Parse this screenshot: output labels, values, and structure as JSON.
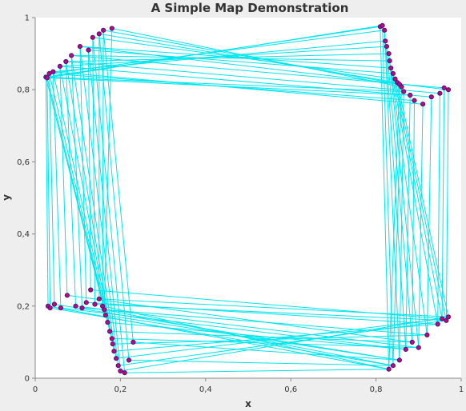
{
  "chart_data": {
    "type": "scatter",
    "title": "A Simple Map Demonstration",
    "xlabel": "x",
    "ylabel": "y",
    "xlim": [
      0,
      1
    ],
    "ylim": [
      0,
      1
    ],
    "x_ticks": [
      "0",
      "0,2",
      "0,4",
      "0,6",
      "0,8",
      "1"
    ],
    "y_ticks": [
      "0",
      "0,2",
      "0,4",
      "0,6",
      "0,8",
      "1"
    ],
    "grid": false,
    "legend": "none",
    "colors": {
      "background": "#eeeeee",
      "plot_background": "#ffffff",
      "line": "#00e5ee",
      "marker_fill": "#cc0077",
      "marker_stroke": "#3a1c8c",
      "axis": "#888888",
      "text": "#333333"
    },
    "series": [
      {
        "x": [
          0.025,
          0.028,
          0.033,
          0.042,
          0.058,
          0.072,
          0.085,
          0.105,
          0.125,
          0.135,
          0.15,
          0.16,
          0.18
        ],
        "y": [
          0.835,
          0.833,
          0.845,
          0.85,
          0.865,
          0.878,
          0.895,
          0.92,
          0.91,
          0.945,
          0.955,
          0.965,
          0.97
        ]
      },
      {
        "x": [
          0.81,
          0.815,
          0.82,
          0.822,
          0.825,
          0.83,
          0.832,
          0.835,
          0.84,
          0.845,
          0.85,
          0.855,
          0.86,
          0.865,
          0.88,
          0.89,
          0.91,
          0.93,
          0.95,
          0.96,
          0.97
        ],
        "y": [
          0.975,
          0.978,
          0.965,
          0.935,
          0.92,
          0.9,
          0.88,
          0.86,
          0.845,
          0.83,
          0.82,
          0.815,
          0.808,
          0.795,
          0.785,
          0.77,
          0.76,
          0.78,
          0.79,
          0.805,
          0.8
        ]
      },
      {
        "x": [
          0.03,
          0.035,
          0.045,
          0.06,
          0.075,
          0.095,
          0.11,
          0.12,
          0.13,
          0.14,
          0.15,
          0.158,
          0.162,
          0.165,
          0.17,
          0.175,
          0.18,
          0.182,
          0.185,
          0.19,
          0.195,
          0.2,
          0.21,
          0.22,
          0.23
        ],
        "y": [
          0.2,
          0.195,
          0.205,
          0.195,
          0.23,
          0.2,
          0.195,
          0.21,
          0.245,
          0.205,
          0.22,
          0.2,
          0.19,
          0.175,
          0.155,
          0.13,
          0.11,
          0.095,
          0.075,
          0.055,
          0.035,
          0.02,
          0.015,
          0.05,
          0.1
        ]
      },
      {
        "x": [
          0.83,
          0.84,
          0.855,
          0.87,
          0.885,
          0.9,
          0.92,
          0.945,
          0.955,
          0.965,
          0.97
        ],
        "y": [
          0.025,
          0.035,
          0.05,
          0.08,
          0.1,
          0.085,
          0.12,
          0.15,
          0.165,
          0.16,
          0.17
        ]
      }
    ]
  }
}
